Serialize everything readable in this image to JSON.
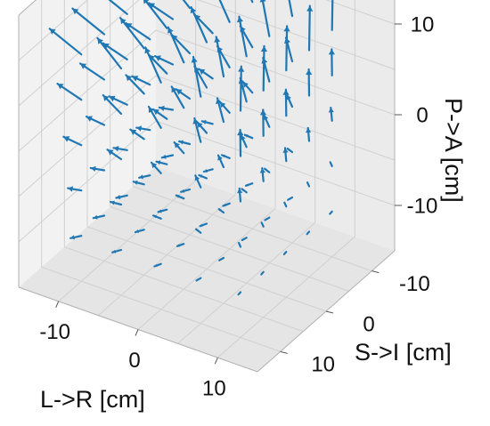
{
  "chart_data": {
    "type": "quiver3d",
    "title": "",
    "xlabel": "L->R [cm]",
    "ylabel": "S->I [cm]",
    "zlabel": "P->A [cm]",
    "x_ticks": [
      "-10",
      "0",
      "10"
    ],
    "y_ticks": [
      "-10",
      "0",
      "10"
    ],
    "z_ticks": [
      "-10",
      "0",
      "10"
    ],
    "xlim": [
      -15,
      15
    ],
    "ylim": [
      -15,
      15
    ],
    "zlim": [
      -15,
      15
    ],
    "grid": true,
    "arrow_color": "#1f77b4",
    "pane_color": "#f2f2f2",
    "grid_color": "#d0d0d0",
    "edge_color": "#b0b0b0",
    "tick_color": "#111111",
    "field": {
      "x": [
        -10,
        -5,
        0,
        5,
        10
      ],
      "y": [
        -10,
        -5,
        0,
        5,
        10
      ],
      "z": [
        -10,
        -5,
        0,
        5,
        10
      ],
      "vector_description": "Arrows grow toward the top (+P->A) of the volume: pointing in -L->R direction on the left side and along +P->A / -S->I on the right; small near the bottom"
    }
  }
}
